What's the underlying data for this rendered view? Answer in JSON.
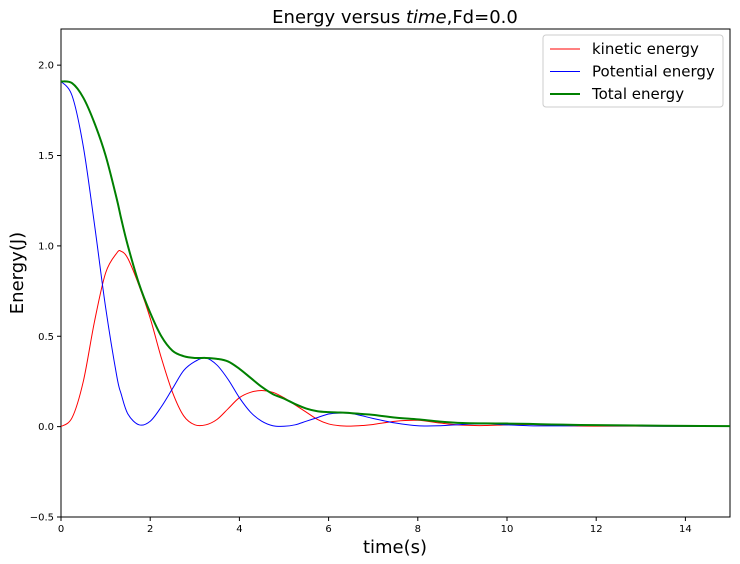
{
  "chart_data": {
    "type": "line",
    "title": "Energy versus time,Fd=0.0",
    "title_parts": {
      "prefix": "Energy versus ",
      "italic": "time",
      "suffix": ",Fd=0.0"
    },
    "xlabel": "time(s)",
    "ylabel": "Energy(J)",
    "xlim": [
      0,
      15
    ],
    "ylim": [
      -0.5,
      2.2
    ],
    "xticks": [
      0,
      2,
      4,
      6,
      8,
      10,
      12,
      14
    ],
    "yticks": [
      -0.5,
      0.0,
      0.5,
      1.0,
      1.5,
      2.0
    ],
    "xtick_labels": [
      "0",
      "2",
      "4",
      "6",
      "8",
      "10",
      "12",
      "14"
    ],
    "ytick_labels": [
      "−0.5",
      "0.0",
      "0.5",
      "1.0",
      "1.5",
      "2.0"
    ],
    "grid": false,
    "legend_position": "top-right",
    "x": [
      0,
      0.25,
      0.5,
      0.75,
      1.0,
      1.25,
      1.35,
      1.5,
      1.75,
      2.0,
      2.25,
      2.5,
      2.75,
      3.0,
      3.25,
      3.5,
      3.75,
      4.0,
      4.25,
      4.5,
      4.75,
      5.0,
      5.25,
      5.5,
      5.75,
      6.0,
      6.25,
      6.5,
      6.75,
      7.0,
      7.5,
      8.0,
      8.5,
      9.0,
      9.5,
      10.0,
      10.5,
      11.0,
      11.5,
      12.0,
      13.0,
      14.0,
      15.0
    ],
    "series": [
      {
        "name": "kinetic energy",
        "color": "#ff0000",
        "linewidth": 1,
        "values": [
          0.0,
          0.05,
          0.25,
          0.58,
          0.85,
          0.96,
          0.97,
          0.93,
          0.78,
          0.6,
          0.38,
          0.19,
          0.06,
          0.01,
          0.01,
          0.04,
          0.1,
          0.16,
          0.19,
          0.2,
          0.19,
          0.16,
          0.12,
          0.08,
          0.04,
          0.015,
          0.005,
          0.003,
          0.006,
          0.012,
          0.03,
          0.035,
          0.02,
          0.008,
          0.006,
          0.01,
          0.012,
          0.008,
          0.004,
          0.003,
          0.003,
          0.002,
          0.001
        ]
      },
      {
        "name": "Potential energy",
        "color": "#0000ff",
        "linewidth": 1,
        "values": [
          1.91,
          1.83,
          1.55,
          1.12,
          0.66,
          0.28,
          0.18,
          0.07,
          0.01,
          0.03,
          0.11,
          0.21,
          0.31,
          0.36,
          0.38,
          0.34,
          0.26,
          0.16,
          0.08,
          0.03,
          0.005,
          0.002,
          0.01,
          0.03,
          0.05,
          0.07,
          0.075,
          0.073,
          0.06,
          0.045,
          0.02,
          0.005,
          0.005,
          0.012,
          0.015,
          0.01,
          0.005,
          0.004,
          0.005,
          0.006,
          0.003,
          0.002,
          0.001
        ]
      },
      {
        "name": "Total energy",
        "color": "#008000",
        "linewidth": 2,
        "values": [
          1.91,
          1.9,
          1.82,
          1.68,
          1.5,
          1.26,
          1.15,
          1.0,
          0.79,
          0.63,
          0.5,
          0.42,
          0.39,
          0.38,
          0.38,
          0.375,
          0.36,
          0.32,
          0.27,
          0.22,
          0.18,
          0.155,
          0.125,
          0.1,
          0.085,
          0.08,
          0.078,
          0.075,
          0.07,
          0.065,
          0.05,
          0.04,
          0.028,
          0.02,
          0.018,
          0.017,
          0.015,
          0.012,
          0.01,
          0.008,
          0.006,
          0.004,
          0.003
        ]
      }
    ]
  }
}
